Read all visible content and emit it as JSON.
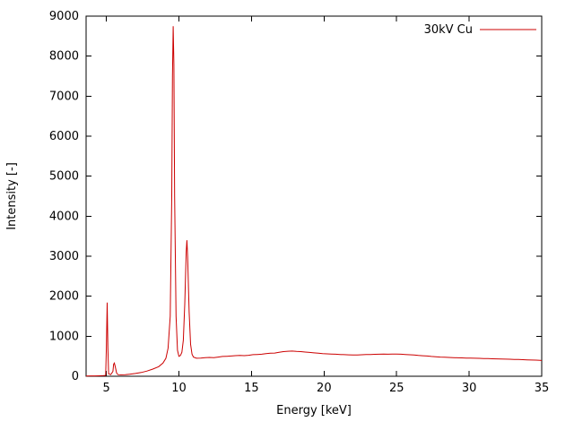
{
  "chart_data": {
    "type": "line",
    "title": "",
    "xlabel": "Energy [keV]",
    "ylabel": "Intensity [-]",
    "xlim": [
      3.6,
      35
    ],
    "ylim": [
      0,
      9000
    ],
    "xticks": [
      5,
      10,
      15,
      20,
      25,
      30,
      35
    ],
    "yticks": [
      0,
      1000,
      2000,
      3000,
      4000,
      5000,
      6000,
      7000,
      8000,
      9000
    ],
    "grid": false,
    "legend": {
      "label": "30kV Cu",
      "position": "top-right"
    },
    "series": [
      {
        "name": "30kV Cu",
        "color": "#cc0000",
        "points": [
          [
            3.6,
            5
          ],
          [
            3.9,
            8
          ],
          [
            4.2,
            10
          ],
          [
            4.5,
            12
          ],
          [
            4.8,
            15
          ],
          [
            4.95,
            20
          ],
          [
            5.0,
            700
          ],
          [
            5.05,
            1840
          ],
          [
            5.1,
            700
          ],
          [
            5.15,
            60
          ],
          [
            5.3,
            40
          ],
          [
            5.45,
            120
          ],
          [
            5.5,
            300
          ],
          [
            5.55,
            330
          ],
          [
            5.6,
            250
          ],
          [
            5.7,
            80
          ],
          [
            5.8,
            40
          ],
          [
            6.0,
            35
          ],
          [
            6.3,
            40
          ],
          [
            6.6,
            50
          ],
          [
            7.0,
            70
          ],
          [
            7.4,
            95
          ],
          [
            7.8,
            130
          ],
          [
            8.2,
            180
          ],
          [
            8.6,
            240
          ],
          [
            8.9,
            330
          ],
          [
            9.1,
            450
          ],
          [
            9.25,
            700
          ],
          [
            9.4,
            1500
          ],
          [
            9.5,
            4500
          ],
          [
            9.55,
            7500
          ],
          [
            9.6,
            8750
          ],
          [
            9.65,
            7800
          ],
          [
            9.7,
            4500
          ],
          [
            9.8,
            1500
          ],
          [
            9.9,
            650
          ],
          [
            10.0,
            500
          ],
          [
            10.1,
            520
          ],
          [
            10.2,
            600
          ],
          [
            10.3,
            900
          ],
          [
            10.4,
            1800
          ],
          [
            10.5,
            3100
          ],
          [
            10.55,
            3400
          ],
          [
            10.6,
            3000
          ],
          [
            10.7,
            1600
          ],
          [
            10.8,
            800
          ],
          [
            10.9,
            550
          ],
          [
            11.0,
            480
          ],
          [
            11.2,
            450
          ],
          [
            11.5,
            455
          ],
          [
            11.8,
            465
          ],
          [
            12.1,
            470
          ],
          [
            12.4,
            465
          ],
          [
            12.7,
            480
          ],
          [
            13.0,
            495
          ],
          [
            13.3,
            500
          ],
          [
            13.6,
            505
          ],
          [
            13.9,
            515
          ],
          [
            14.2,
            520
          ],
          [
            14.5,
            515
          ],
          [
            14.8,
            525
          ],
          [
            15.1,
            540
          ],
          [
            15.4,
            545
          ],
          [
            15.7,
            550
          ],
          [
            16.0,
            565
          ],
          [
            16.3,
            575
          ],
          [
            16.6,
            580
          ],
          [
            16.9,
            600
          ],
          [
            17.2,
            615
          ],
          [
            17.5,
            625
          ],
          [
            17.8,
            630
          ],
          [
            18.1,
            620
          ],
          [
            18.4,
            615
          ],
          [
            18.7,
            605
          ],
          [
            19.0,
            595
          ],
          [
            19.3,
            585
          ],
          [
            19.6,
            575
          ],
          [
            19.9,
            565
          ],
          [
            20.2,
            560
          ],
          [
            20.5,
            555
          ],
          [
            20.8,
            550
          ],
          [
            21.1,
            545
          ],
          [
            21.4,
            540
          ],
          [
            21.7,
            535
          ],
          [
            22.0,
            530
          ],
          [
            22.3,
            532
          ],
          [
            22.6,
            538
          ],
          [
            22.9,
            542
          ],
          [
            23.2,
            545
          ],
          [
            23.5,
            548
          ],
          [
            23.8,
            550
          ],
          [
            24.1,
            552
          ],
          [
            24.4,
            550
          ],
          [
            24.7,
            553
          ],
          [
            25.0,
            555
          ],
          [
            25.3,
            550
          ],
          [
            25.6,
            545
          ],
          [
            25.9,
            538
          ],
          [
            26.2,
            530
          ],
          [
            26.5,
            520
          ],
          [
            26.8,
            512
          ],
          [
            27.1,
            505
          ],
          [
            27.4,
            495
          ],
          [
            27.7,
            488
          ],
          [
            28.0,
            480
          ],
          [
            28.3,
            475
          ],
          [
            28.6,
            470
          ],
          [
            28.9,
            466
          ],
          [
            29.2,
            462
          ],
          [
            29.5,
            458
          ],
          [
            29.8,
            455
          ],
          [
            30.1,
            452
          ],
          [
            30.4,
            450
          ],
          [
            30.7,
            447
          ],
          [
            31.0,
            444
          ],
          [
            31.3,
            440
          ],
          [
            31.6,
            437
          ],
          [
            31.9,
            434
          ],
          [
            32.2,
            431
          ],
          [
            32.5,
            428
          ],
          [
            32.8,
            425
          ],
          [
            33.1,
            422
          ],
          [
            33.4,
            418
          ],
          [
            33.7,
            414
          ],
          [
            34.0,
            410
          ],
          [
            34.3,
            406
          ],
          [
            34.6,
            402
          ],
          [
            34.9,
            396
          ],
          [
            35.0,
            392
          ]
        ]
      }
    ]
  },
  "colors": {
    "background": "#ffffff",
    "axis": "#000000",
    "line": "#cc0000"
  }
}
